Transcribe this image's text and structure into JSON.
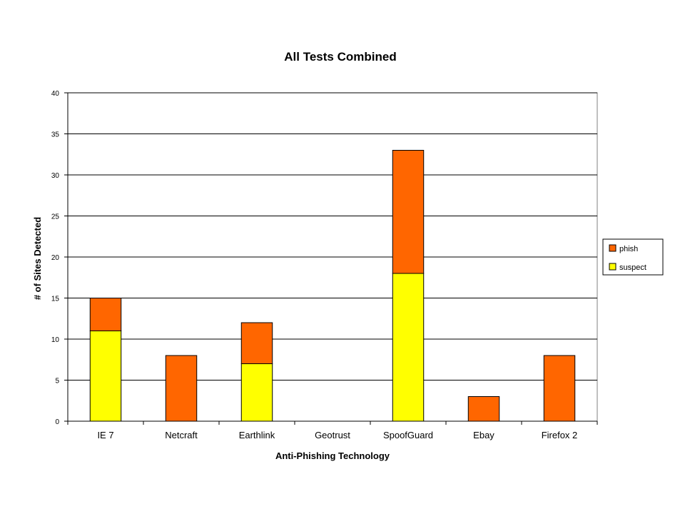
{
  "chart_data": {
    "type": "bar",
    "stacked": true,
    "title": "All Tests Combined",
    "xlabel": "Anti-Phishing Technology",
    "ylabel": "# of Sites Detected",
    "categories": [
      "IE 7",
      "Netcraft",
      "Earthlink",
      "Geotrust",
      "SpoofGuard",
      "Ebay",
      "Firefox 2"
    ],
    "series": [
      {
        "name": "suspect",
        "color": "#ffff00",
        "values": [
          11,
          0,
          7,
          0,
          18,
          0,
          0
        ]
      },
      {
        "name": "phish",
        "color": "#ff6600",
        "values": [
          4,
          8,
          5,
          0,
          15,
          3,
          8
        ]
      }
    ],
    "ylim": [
      0,
      40
    ],
    "yticks": [
      0,
      5,
      10,
      15,
      20,
      25,
      30,
      35,
      40
    ],
    "grid": true,
    "legend": {
      "position": "right",
      "order": [
        "phish",
        "suspect"
      ]
    }
  }
}
